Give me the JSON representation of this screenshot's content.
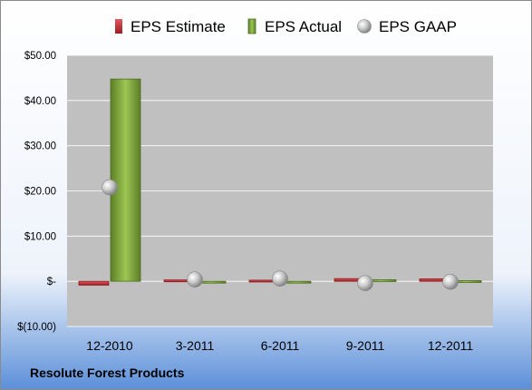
{
  "company": "Resolute Forest Products",
  "colors": {
    "estimate": "#c0282d",
    "actual": "#7ea63a",
    "gaap": "#a6a6a6",
    "plot_background": "#c0c0c0",
    "background_top": "#ffffff",
    "background_bottom": "#5b8fd9"
  },
  "chart_data": {
    "type": "bar",
    "categories": [
      "12-2010",
      "3-2011",
      "6-2011",
      "9-2011",
      "12-2011"
    ],
    "series": [
      {
        "name": "EPS Estimate",
        "values": [
          -0.85,
          0.3,
          0.25,
          0.6,
          0.55
        ]
      },
      {
        "name": "EPS Actual",
        "values": [
          44.75,
          -0.2,
          -0.2,
          0.35,
          0.15
        ]
      },
      {
        "name": "EPS GAAP",
        "values": [
          20.8,
          0.4,
          0.6,
          -0.4,
          -0.1
        ]
      }
    ],
    "series_marks": [
      "bar",
      "bar",
      "marker"
    ],
    "yticks": [
      "$(10.00)",
      "$-",
      "$10.00",
      "$20.00",
      "$30.00",
      "$40.00",
      "$50.00"
    ],
    "ytick_values": [
      -10,
      0,
      10,
      20,
      30,
      40,
      50
    ],
    "ylim": [
      -10,
      50
    ],
    "grid": true,
    "legend_position": "top"
  }
}
